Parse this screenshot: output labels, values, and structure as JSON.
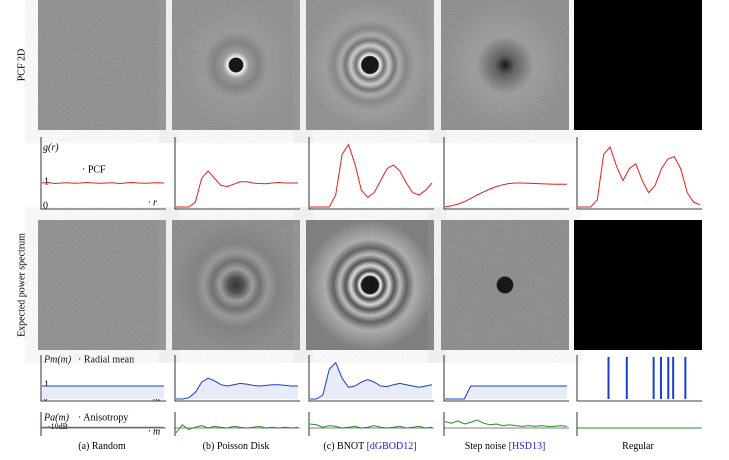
{
  "row_labels": [
    "PCF 2D",
    "Expected power spectrum"
  ],
  "legend": {
    "pcf_axis": "g(r)",
    "pcf": "· PCF",
    "one": "1",
    "zero": "0",
    "r": "· r",
    "radial_axis": "Pm(m)",
    "radial": "· Radial mean",
    "m": "· m",
    "aniso_axis": "Pa(m)",
    "aniso": "· Anisotropy",
    "db": "-10dB"
  },
  "columns": [
    {
      "caption": "(a) Random",
      "pcf": [
        1,
        1.02,
        0.98,
        1,
        1.01,
        0.99,
        1,
        1.02,
        1,
        0.99,
        1,
        1.01,
        0.98,
        1,
        1.02,
        1,
        0.99,
        1,
        1.01,
        1
      ],
      "radial": [
        1,
        1,
        1,
        1,
        1,
        1,
        1,
        1,
        1,
        1,
        1,
        1,
        1,
        1,
        1,
        1,
        1,
        1,
        1,
        1
      ],
      "aniso": [
        0.1,
        0.1,
        0.1,
        0.1,
        0.1,
        0.1,
        0.1,
        0.1,
        0.1,
        0.1,
        0.1,
        0.1,
        0.1,
        0.1,
        0.1,
        0.1,
        0.1,
        0.1,
        0.1,
        0.1
      ]
    },
    {
      "caption": "(b) Poisson Disk",
      "pcf": [
        0,
        0,
        0,
        0.2,
        1.2,
        1.5,
        1.2,
        0.9,
        0.85,
        0.95,
        1.05,
        1.05,
        1,
        0.98,
        0.97,
        1,
        1.02,
        1,
        1,
        1
      ],
      "radial": [
        0,
        0,
        0.1,
        0.5,
        1.3,
        1.6,
        1.4,
        1.1,
        1,
        1.1,
        1.2,
        1.15,
        1.05,
        1,
        1.05,
        1.1,
        1.1,
        1.05,
        1,
        1
      ],
      "aniso": [
        -0.6,
        0.4,
        -0.2,
        0.1,
        0.3,
        0,
        0.2,
        0.1,
        0,
        0.2,
        0.1,
        0,
        0.1,
        0.2,
        0,
        0.1,
        0,
        0.1,
        0,
        0.1
      ]
    },
    {
      "caption": "(c) BNOT ",
      "cite": "[dGBOD12]",
      "pcf": [
        0,
        0,
        0,
        0,
        0.5,
        2.2,
        2.6,
        1.8,
        0.7,
        0.4,
        0.6,
        1.1,
        1.6,
        1.75,
        1.5,
        1,
        0.6,
        0.5,
        0.7,
        1
      ],
      "radial": [
        0,
        0,
        0.3,
        2.3,
        2.8,
        1.6,
        0.9,
        1,
        1.3,
        1.5,
        1.3,
        1,
        0.95,
        1.1,
        1.2,
        1.1,
        1,
        0.9,
        1,
        1.1
      ],
      "aniso": [
        0.5,
        0.4,
        0.1,
        0.3,
        0.2,
        0,
        0.1,
        0.2,
        0,
        0.1,
        0.3,
        0.1,
        0,
        0.1,
        0.2,
        0,
        0.1,
        0.2,
        0,
        0.1
      ]
    },
    {
      "caption": "Step noise ",
      "cite": "[HSD13]",
      "pcf": [
        0,
        0.05,
        0.12,
        0.22,
        0.35,
        0.5,
        0.63,
        0.75,
        0.85,
        0.93,
        0.98,
        1,
        1,
        0.99,
        0.98,
        0.97,
        0.96,
        0.95,
        0.95,
        0.95
      ],
      "radial": [
        0,
        0,
        0,
        0,
        1,
        1,
        1,
        1,
        1,
        1,
        1,
        1,
        1,
        1,
        1,
        1,
        1,
        1,
        1,
        1
      ],
      "aniso": [
        0.8,
        0.6,
        0.9,
        0.5,
        0.7,
        1,
        0.6,
        0.4,
        0.5,
        0.3,
        0.4,
        0.3,
        0.2,
        0.3,
        0.2,
        0.3,
        0.2,
        0.2,
        0.3,
        0.2
      ]
    },
    {
      "caption": "Regular",
      "pcf": [
        0,
        0,
        0,
        0.3,
        2.2,
        2.5,
        1.7,
        1.1,
        1.6,
        1.8,
        1.1,
        0.6,
        0.9,
        1.6,
        2,
        2.1,
        1.6,
        0.6,
        0.2,
        0.1
      ],
      "spikes": [
        0.25,
        0.4,
        0.62,
        0.68,
        0.74,
        0.78,
        0.88
      ],
      "aniso": [
        0,
        0,
        0,
        0,
        0,
        0,
        0,
        0,
        0,
        0,
        0,
        0,
        0,
        0,
        0,
        0,
        0,
        0,
        0,
        0
      ]
    }
  ]
}
